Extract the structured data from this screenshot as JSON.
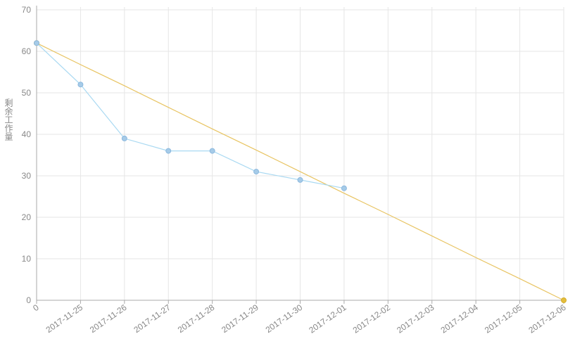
{
  "chart_data": {
    "type": "line",
    "ylabel": "剩余工作量",
    "categories": [
      "0",
      "2017-11-25",
      "2017-11-26",
      "2017-11-27",
      "2017-11-28",
      "2017-11-29",
      "2017-11-30",
      "2017-12-01",
      "2017-12-02",
      "2017-12-03",
      "2017-12-04",
      "2017-12-05",
      "2017-12-06"
    ],
    "series": [
      {
        "color": "#e8c462",
        "values": [
          62,
          56.8,
          51.7,
          46.5,
          41.3,
          36.2,
          31,
          25.8,
          20.7,
          15.5,
          10.3,
          5.2,
          0
        ]
      },
      {
        "color": "#a9d9f2",
        "values": [
          62,
          52,
          39,
          36,
          36,
          31,
          29,
          27,
          null,
          null,
          null,
          null,
          null
        ]
      }
    ],
    "ylim": [
      0,
      70
    ],
    "yticks": [
      0,
      10,
      20,
      30,
      40,
      50,
      60,
      70
    ],
    "grid": true
  }
}
